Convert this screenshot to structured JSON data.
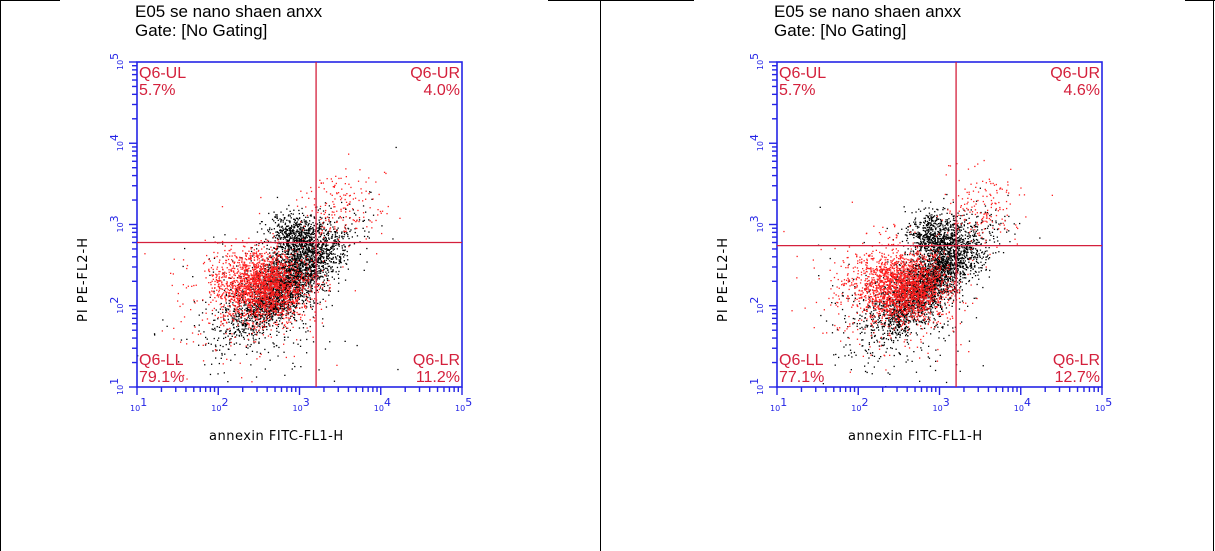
{
  "chart_data": [
    {
      "type": "scatter",
      "title": "E05 se nano  shaen anxx",
      "subtitle": "Gate: [No Gating]",
      "xlabel": "annexin FITC-FL1-H",
      "ylabel": "PI PE-FL2-H",
      "xscale": "log",
      "yscale": "log",
      "xlim": [
        10,
        100000
      ],
      "ylim": [
        10,
        100000
      ],
      "x_ticks": [
        "10^1",
        "10^2",
        "10^3",
        "10^4",
        "10^5"
      ],
      "y_ticks": [
        "10^1",
        "10^2",
        "10^3",
        "10^4",
        "10^5"
      ],
      "quadrant_x": 1600,
      "quadrant_y": 600,
      "quadrants": [
        {
          "label": "Q6-UL",
          "value": "5.7%",
          "position": "top-left"
        },
        {
          "label": "Q6-UR",
          "value": "4.0%",
          "position": "top-right"
        },
        {
          "label": "Q6-LL",
          "value": "79.1%",
          "position": "bottom-left"
        },
        {
          "label": "Q6-LR",
          "value": "11.2%",
          "position": "bottom-right"
        }
      ],
      "colors": {
        "axis": "#2424e6",
        "quadrant": "#d4203c",
        "black_points": "#000000",
        "red_points": "#ff2020"
      },
      "seed": 11
    },
    {
      "type": "scatter",
      "title": "E05 se nano  shaen anxx",
      "subtitle": "Gate: [No Gating]",
      "xlabel": "annexin FITC-FL1-H",
      "ylabel": "PI PE-FL2-H",
      "xscale": "log",
      "yscale": "log",
      "xlim": [
        10,
        100000
      ],
      "ylim": [
        10,
        100000
      ],
      "x_ticks": [
        "10^1",
        "10^2",
        "10^3",
        "10^4",
        "10^5"
      ],
      "y_ticks": [
        "10^1",
        "10^2",
        "10^3",
        "10^4",
        "10^5"
      ],
      "quadrant_x": 1600,
      "quadrant_y": 550,
      "quadrants": [
        {
          "label": "Q6-UL",
          "value": "5.7%",
          "position": "top-left"
        },
        {
          "label": "Q6-UR",
          "value": "4.6%",
          "position": "top-right"
        },
        {
          "label": "Q6-LL",
          "value": "77.1%",
          "position": "bottom-left"
        },
        {
          "label": "Q6-LR",
          "value": "12.7%",
          "position": "bottom-right"
        }
      ],
      "colors": {
        "axis": "#2424e6",
        "quadrant": "#d4203c",
        "black_points": "#000000",
        "red_points": "#ff2020"
      },
      "seed": 29
    }
  ]
}
